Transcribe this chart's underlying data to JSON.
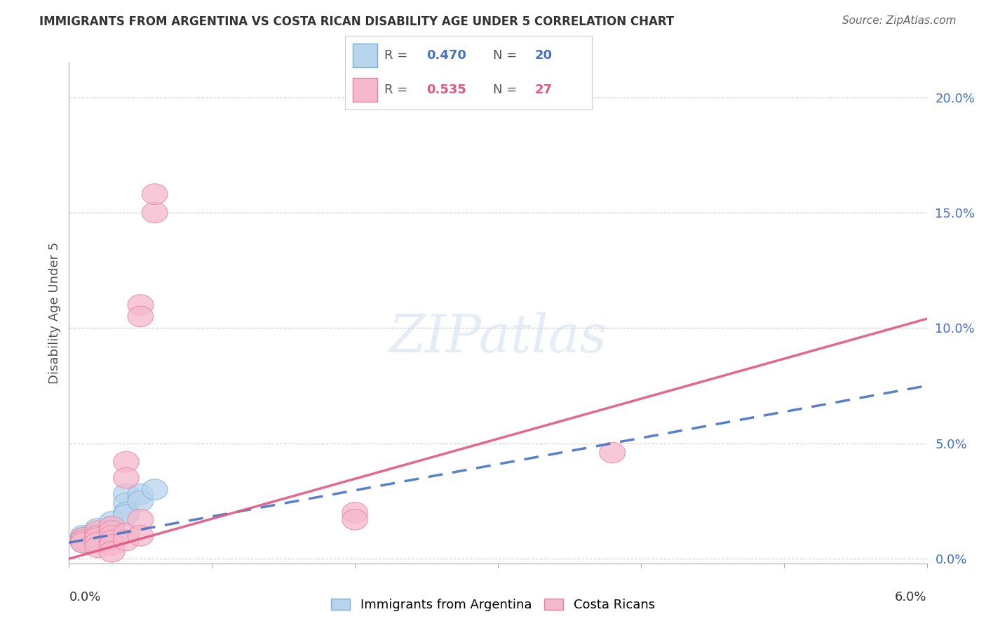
{
  "title": "IMMIGRANTS FROM ARGENTINA VS COSTA RICAN DISABILITY AGE UNDER 5 CORRELATION CHART",
  "source": "Source: ZipAtlas.com",
  "ylabel": "Disability Age Under 5",
  "y_tick_values": [
    0.0,
    0.05,
    0.1,
    0.15,
    0.2
  ],
  "x_range": [
    0.0,
    0.06
  ],
  "y_range": [
    -0.002,
    0.215
  ],
  "legend1_R": "0.470",
  "legend1_N": "20",
  "legend2_R": "0.535",
  "legend2_N": "27",
  "color_blue_fill": "#b8d4ec",
  "color_blue_edge": "#7aafd4",
  "color_pink_fill": "#f5b8cc",
  "color_pink_edge": "#e880a0",
  "color_blue_line": "#4472c4",
  "color_pink_line": "#e05880",
  "watermark": "ZIPatlas",
  "argentina_points": [
    [
      0.001,
      0.01
    ],
    [
      0.001,
      0.009
    ],
    [
      0.001,
      0.007
    ],
    [
      0.002,
      0.013
    ],
    [
      0.002,
      0.011
    ],
    [
      0.002,
      0.01
    ],
    [
      0.002,
      0.009
    ],
    [
      0.002,
      0.008
    ],
    [
      0.003,
      0.016
    ],
    [
      0.003,
      0.014
    ],
    [
      0.003,
      0.013
    ],
    [
      0.003,
      0.011
    ],
    [
      0.003,
      0.01
    ],
    [
      0.004,
      0.028
    ],
    [
      0.004,
      0.024
    ],
    [
      0.004,
      0.02
    ],
    [
      0.004,
      0.019
    ],
    [
      0.005,
      0.028
    ],
    [
      0.005,
      0.025
    ],
    [
      0.006,
      0.03
    ]
  ],
  "costa_rican_points": [
    [
      0.001,
      0.009
    ],
    [
      0.001,
      0.008
    ],
    [
      0.001,
      0.007
    ],
    [
      0.002,
      0.012
    ],
    [
      0.002,
      0.01
    ],
    [
      0.002,
      0.009
    ],
    [
      0.002,
      0.007
    ],
    [
      0.002,
      0.005
    ],
    [
      0.003,
      0.014
    ],
    [
      0.003,
      0.012
    ],
    [
      0.003,
      0.01
    ],
    [
      0.003,
      0.008
    ],
    [
      0.003,
      0.006
    ],
    [
      0.003,
      0.003
    ],
    [
      0.004,
      0.042
    ],
    [
      0.004,
      0.035
    ],
    [
      0.004,
      0.011
    ],
    [
      0.004,
      0.008
    ],
    [
      0.005,
      0.11
    ],
    [
      0.005,
      0.105
    ],
    [
      0.005,
      0.017
    ],
    [
      0.005,
      0.01
    ],
    [
      0.006,
      0.15
    ],
    [
      0.006,
      0.158
    ],
    [
      0.02,
      0.02
    ],
    [
      0.02,
      0.017
    ],
    [
      0.038,
      0.046
    ]
  ],
  "arg_line": [
    0.0,
    0.06,
    0.007,
    0.075
  ],
  "cr_line": [
    0.0,
    0.06,
    0.001,
    0.104
  ]
}
